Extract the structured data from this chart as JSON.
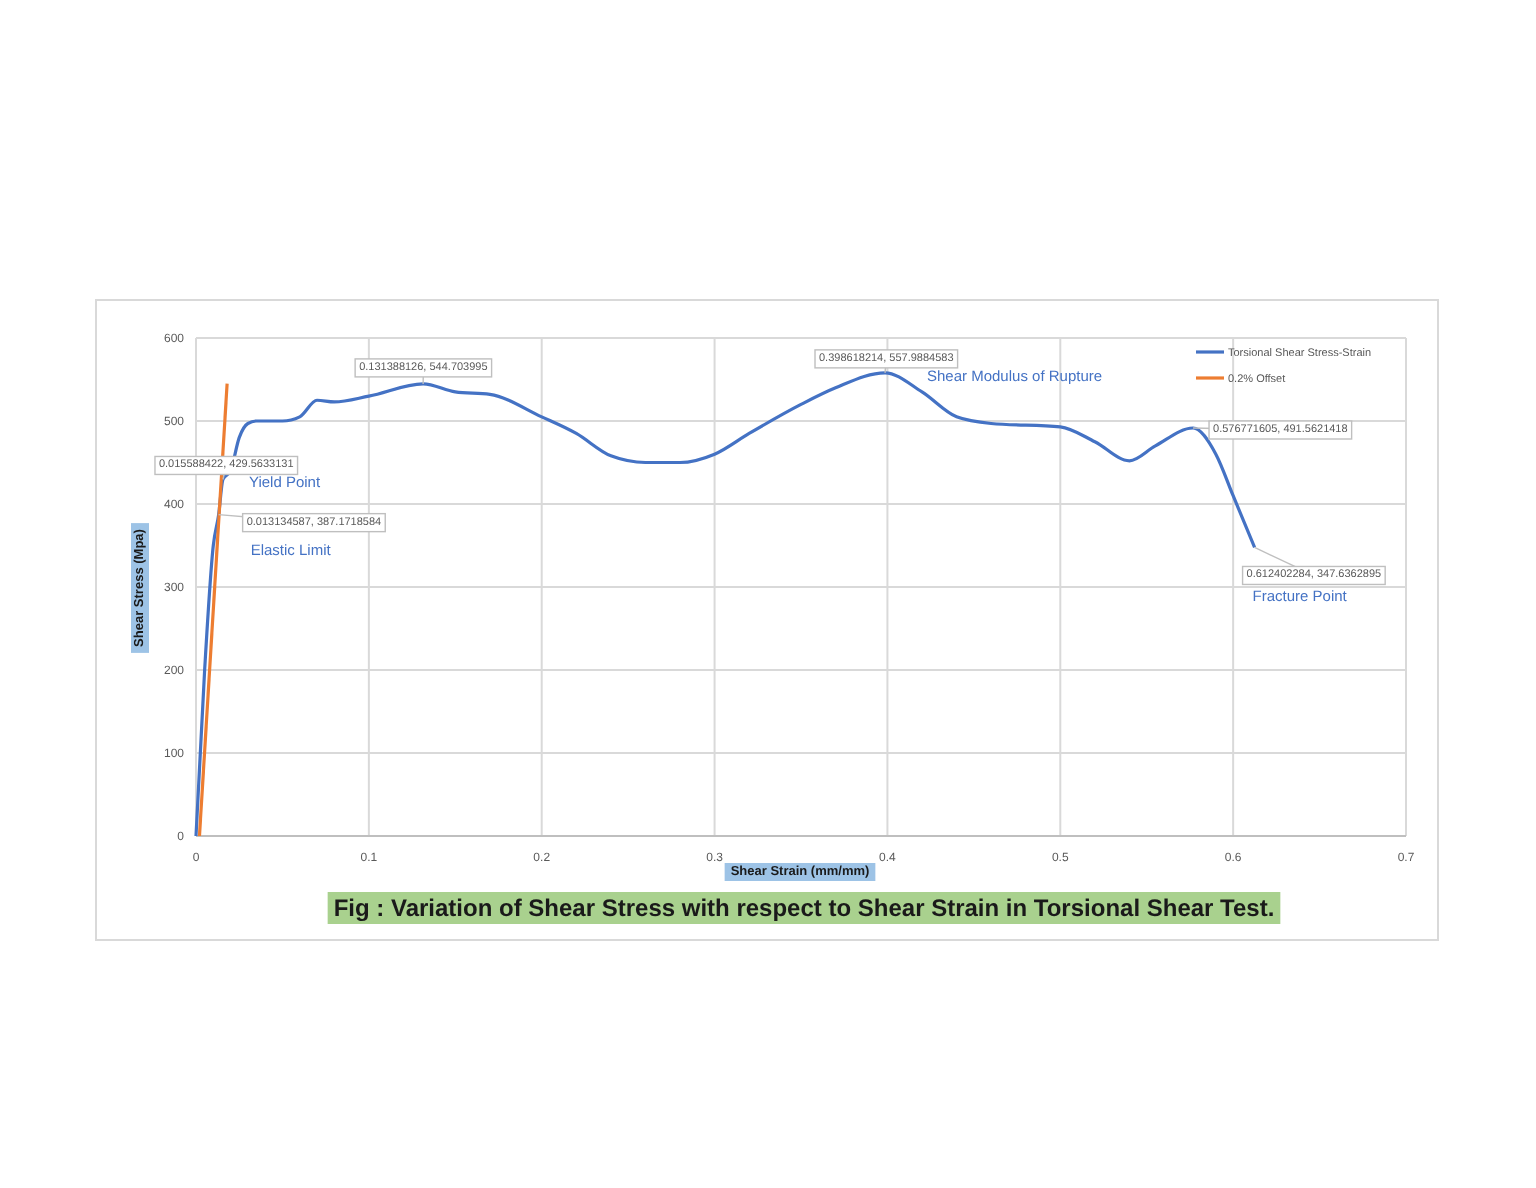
{
  "chart_data": {
    "type": "line",
    "title": "Fig : Variation of Shear Stress with respect to Shear Strain in Torsional Shear Test.",
    "xlabel": "Shear Strain (mm/mm)",
    "ylabel": "Shear Stress (Mpa)",
    "xlim": [
      0,
      0.7
    ],
    "xticks": [
      0,
      0.1,
      0.2,
      0.3,
      0.4,
      0.5,
      0.6,
      0.7
    ],
    "ylim": [
      0,
      600
    ],
    "yticks": [
      0,
      100,
      200,
      300,
      400,
      500,
      600
    ],
    "grid": true,
    "legend": "top right",
    "marker": "none",
    "line_style": "solid",
    "series": [
      {
        "name": "Torsional Shear Stress-Strain",
        "color": "#4472c4",
        "x": [
          0,
          0.005,
          0.01,
          0.0131,
          0.0156,
          0.02,
          0.025,
          0.03,
          0.035,
          0.05,
          0.06,
          0.07,
          0.08,
          0.1,
          0.1314,
          0.15,
          0.17,
          0.2,
          0.22,
          0.24,
          0.26,
          0.28,
          0.3,
          0.32,
          0.35,
          0.37,
          0.3986,
          0.42,
          0.44,
          0.46,
          0.5,
          0.52,
          0.54,
          0.555,
          0.5768,
          0.59,
          0.6,
          0.6124
        ],
        "values": [
          0,
          200,
          350,
          387.17,
          429.56,
          440,
          480,
          497,
          500,
          500,
          505,
          525,
          523,
          530,
          544.7,
          535,
          532,
          505,
          485,
          458,
          450,
          450,
          460,
          485,
          520,
          540,
          557.98,
          535,
          505,
          497,
          493,
          475,
          452,
          470,
          491.56,
          460,
          410,
          347.64
        ]
      },
      {
        "name": "0.2% Offset",
        "color": "#ed7d31",
        "x": [
          0.002,
          0.018
        ],
        "values": [
          0,
          545
        ]
      }
    ],
    "annotations": [
      {
        "text": "0.015588422, 429.5633131",
        "x": 0.0156,
        "y": 429.56
      },
      {
        "text": "Yield Point",
        "x": 0.0156,
        "y": 429.56
      },
      {
        "text": "0.013134587, 387.1718584",
        "x": 0.0131,
        "y": 387.17
      },
      {
        "text": "Elastic Limit",
        "x": 0.0131,
        "y": 387.17
      },
      {
        "text": "0.131388126, 544.703995",
        "x": 0.1314,
        "y": 544.7
      },
      {
        "text": "0.398618214, 557.9884583",
        "x": 0.3986,
        "y": 557.98
      },
      {
        "text": "Shear Modulus of Rupture",
        "x": 0.3986,
        "y": 557.98
      },
      {
        "text": "0.576771605, 491.5621418",
        "x": 0.5768,
        "y": 491.56
      },
      {
        "text": "0.612402284, 347.6362895",
        "x": 0.6124,
        "y": 347.64
      },
      {
        "text": "Fracture Point",
        "x": 0.6124,
        "y": 347.64
      }
    ]
  }
}
